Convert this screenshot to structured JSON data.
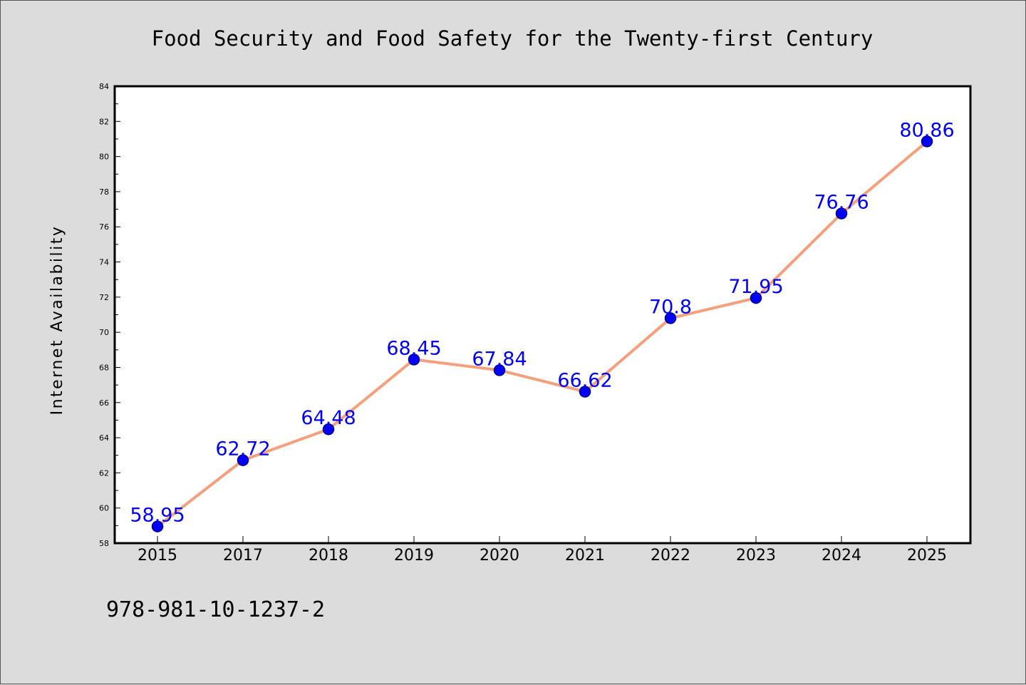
{
  "chart_data": {
    "type": "line",
    "title": "Food Security and Food Safety for the Twenty-first Century",
    "ylabel": "Internet Availability",
    "xlabel": "",
    "categories": [
      "2015",
      "2017",
      "2018",
      "2019",
      "2020",
      "2021",
      "2022",
      "2023",
      "2024",
      "2025"
    ],
    "series": [
      {
        "values": [
          58.95,
          62.72,
          64.48,
          68.45,
          67.84,
          66.62,
          70.8,
          71.95,
          76.76,
          80.86
        ],
        "data_labels": [
          "58.95",
          "62.72",
          "64.48",
          "68.45",
          "67.84",
          "66.62",
          "70.8",
          "71.95",
          "76.76",
          "80.86"
        ]
      }
    ],
    "ylim": [
      58,
      84
    ],
    "y_ticks": [
      "58",
      "60",
      "62",
      "64",
      "66",
      "68",
      "70",
      "72",
      "74",
      "76",
      "78",
      "80",
      "82",
      "84"
    ],
    "grid": false,
    "legend": "none",
    "colors": {
      "line": "#f4a07c",
      "marker": "#0000ff",
      "marker_edge": "#000080",
      "data_label": "#0000ff",
      "plot_background": "#ffffff",
      "page_background": "#dcdcdc"
    }
  },
  "footer_note": "978-981-10-1237-2"
}
